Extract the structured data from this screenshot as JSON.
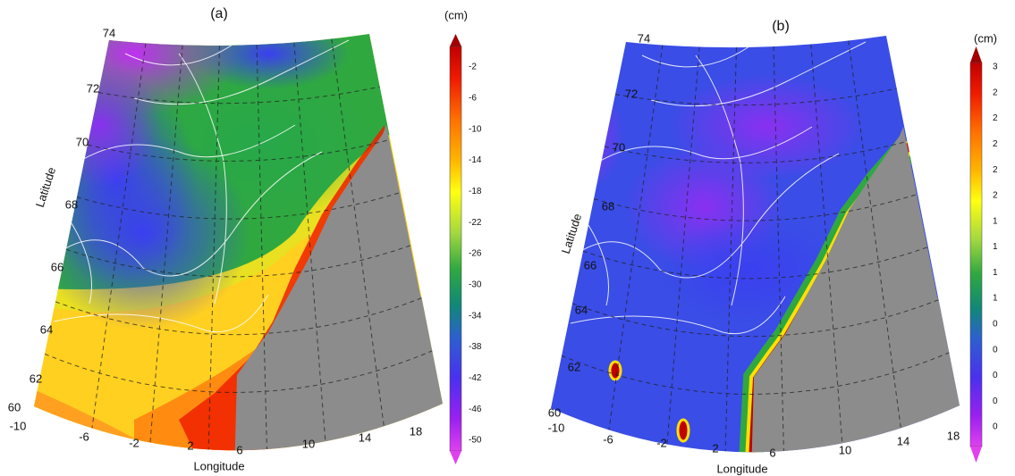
{
  "panels": [
    {
      "label": "(a)",
      "unit": "(cm)",
      "colorbar_ticks": [
        "-2",
        "-6",
        "-10",
        "-14",
        "-18",
        "-22",
        "-26",
        "-30",
        "-34",
        "-38",
        "-42",
        "-46",
        "-50"
      ],
      "x_label": "Longitude",
      "y_label": "Latitude",
      "lat_ticks": [
        "74",
        "72",
        "70",
        "68",
        "66",
        "64",
        "62",
        "60"
      ],
      "lon_ticks": [
        "-10",
        "-6",
        "-2",
        "2",
        "6",
        "10",
        "14",
        "18"
      ]
    },
    {
      "label": "(b)",
      "unit": "(cm)",
      "colorbar_ticks": [
        "3",
        "2",
        "2",
        "2",
        "2",
        "2",
        "1",
        "1",
        "1",
        "1",
        "0",
        "0",
        "0",
        "0",
        "0"
      ],
      "x_label": "Longitude",
      "y_label": "Latitude",
      "lat_ticks": [
        "74",
        "72",
        "70",
        "68",
        "66",
        "64",
        "62",
        "60"
      ],
      "lon_ticks": [
        "-10",
        "-6",
        "-2",
        "2",
        "6",
        "10",
        "14",
        "18"
      ]
    }
  ]
}
